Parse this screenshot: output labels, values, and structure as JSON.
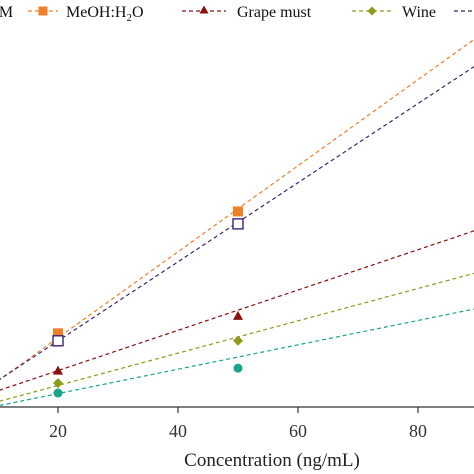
{
  "chart_data": {
    "type": "scatter",
    "title": "",
    "xlabel": "Concentration (ng/mL)",
    "ylabel": "",
    "xlim": [
      10,
      88
    ],
    "ylim": [
      0.0,
      1.6
    ],
    "xticks": [
      "20",
      "40",
      "60",
      "80"
    ],
    "grid": false,
    "legend_placement": "top",
    "legend_fragments": [
      {
        "text": "M",
        "series": "partial-first"
      },
      {
        "text": "MeOH:H",
        "sub": "2",
        "tail": "O"
      },
      {
        "text": "Grape must"
      },
      {
        "text": "Wine"
      }
    ],
    "series": [
      {
        "name": "MeOH:H2O",
        "marker": "square-filled",
        "color": "#F07F2A",
        "points": [
          {
            "x": 20,
            "y": 0.26
          },
          {
            "x": 50,
            "y": 0.75
          }
        ],
        "fit": {
          "slope": 0.0173,
          "intercept": -0.1042
        }
      },
      {
        "name": "",
        "marker": "square-open",
        "color": "#3B2670",
        "points": [
          {
            "x": 20,
            "y": 0.23
          },
          {
            "x": 50,
            "y": 0.7
          }
        ],
        "fit": {
          "slope": 0.0159,
          "intercept": -0.0884
        }
      },
      {
        "name": "Grape must",
        "marker": "triangle-filled",
        "color": "#8B1010",
        "points": [
          {
            "x": 20,
            "y": 0.11
          },
          {
            "x": 50,
            "y": 0.33
          }
        ],
        "fit": {
          "slope": 0.0081,
          "intercept": -0.0519
        }
      },
      {
        "name": "Wine",
        "marker": "diamond-filled",
        "color": "#8E9A1E",
        "points": [
          {
            "x": 20,
            "y": 0.06
          },
          {
            "x": 50,
            "y": 0.23
          }
        ],
        "fit": {
          "slope": 0.0065,
          "intercept": -0.0797
        }
      },
      {
        "name": "",
        "marker": "circle-filled",
        "color": "#1AA58A",
        "points": [
          {
            "x": 20,
            "y": 0.02
          },
          {
            "x": 50,
            "y": 0.12
          }
        ],
        "fit": {
          "slope": 0.0049,
          "intercept": -0.0803
        }
      }
    ]
  }
}
